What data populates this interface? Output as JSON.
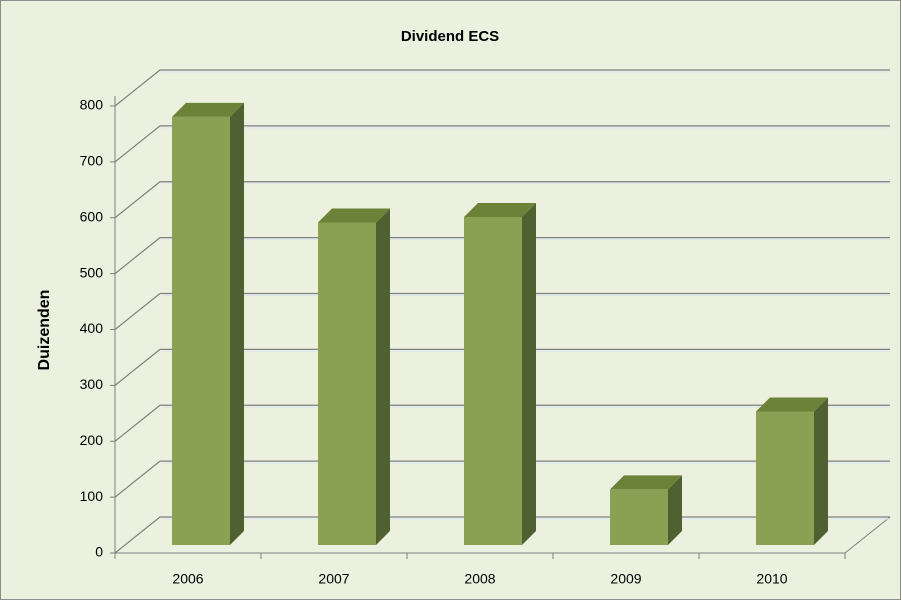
{
  "chart_data": {
    "type": "bar3d",
    "title": "Dividend ECS",
    "y_label": "Duizenden",
    "categories": [
      "2006",
      "2007",
      "2008",
      "2009",
      "2010"
    ],
    "values": [
      770,
      580,
      590,
      100,
      240
    ],
    "color": "#8aa052",
    "ylim": [
      0,
      800
    ],
    "yticks": [
      0,
      100,
      200,
      300,
      400,
      500,
      600,
      700,
      800
    ],
    "grid": true
  }
}
